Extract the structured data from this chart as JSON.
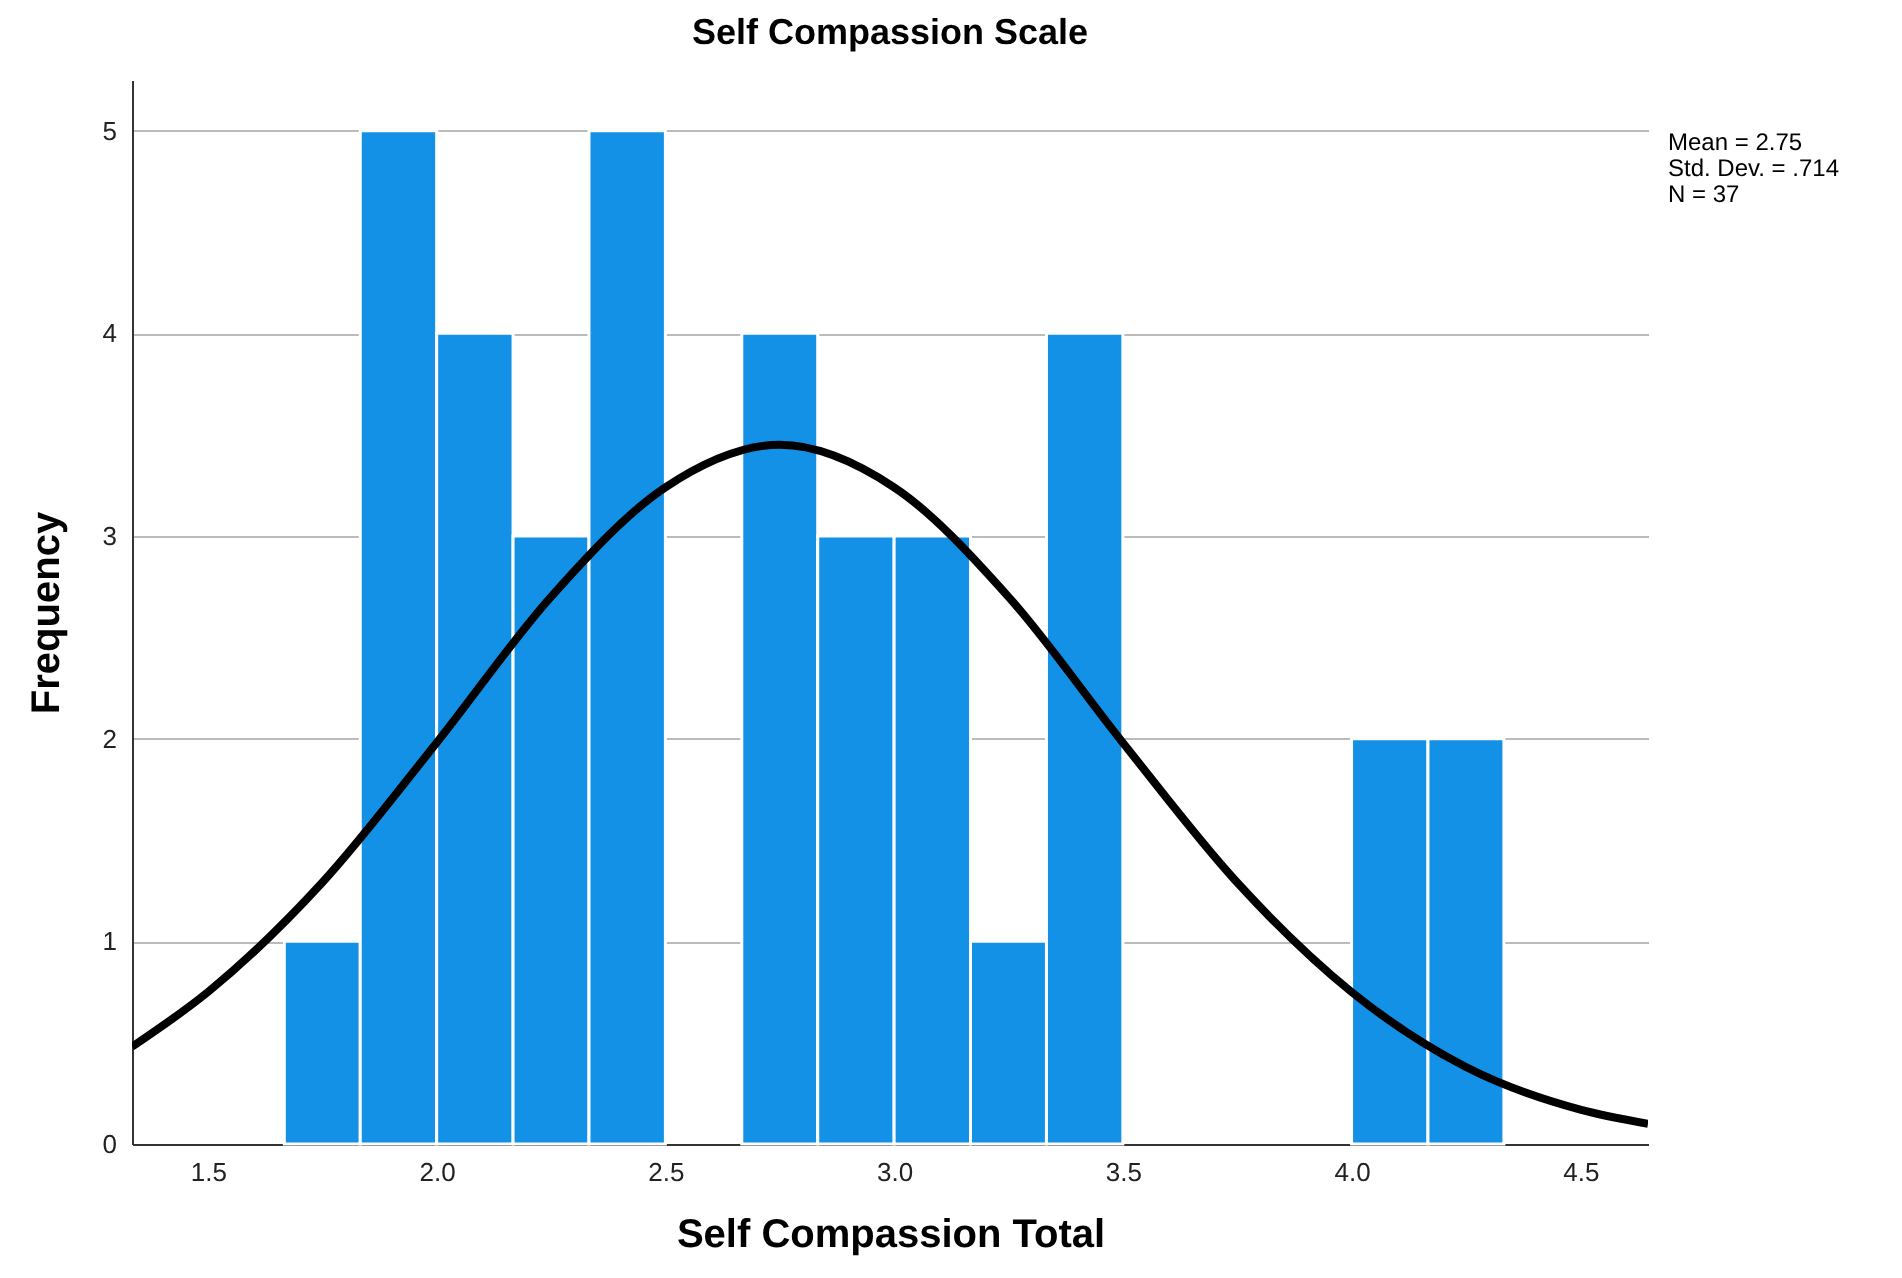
{
  "chart_data": {
    "type": "histogram",
    "title": "Self Compassion Scale",
    "xlabel": "Self Compassion Total",
    "ylabel": "Frequency",
    "bins": [
      1.667,
      1.833,
      2.0,
      2.167,
      2.333,
      2.5,
      2.667,
      2.833,
      3.0,
      3.167,
      3.333,
      3.5,
      3.667,
      3.833,
      4.0,
      4.167,
      4.333
    ],
    "values": [
      1,
      5,
      4,
      3,
      5,
      0,
      4,
      3,
      3,
      1,
      4,
      0,
      0,
      0,
      2,
      2
    ],
    "color": "#1391e6",
    "series": [
      {
        "type": "line",
        "color": "#000000",
        "x": [
          1.334,
          1.5,
          1.75,
          2.0,
          2.25,
          2.5,
          2.75,
          3.0,
          3.25,
          3.5,
          3.75,
          4.0,
          4.25,
          4.5,
          4.648
        ],
        "values": [
          0.48,
          0.75,
          1.29,
          1.98,
          2.7,
          3.24,
          3.45,
          3.24,
          2.7,
          1.98,
          1.29,
          0.75,
          0.38,
          0.17,
          0.1
        ]
      }
    ],
    "xlim": [
      1.334,
      4.648
    ],
    "xticks": [
      1.5,
      {
        "value": 2,
        "label": "2.0"
      },
      2.5,
      {
        "value": 3,
        "label": "3.0"
      },
      3.5,
      {
        "value": 4,
        "label": "4.0"
      },
      4.5
    ],
    "ylim": [
      0,
      5.25
    ],
    "yticks": [
      0,
      1,
      2,
      3,
      4,
      5
    ],
    "grid": "y",
    "annotations": [
      "Mean = 2.75",
      "Std. Dev. = .714",
      "N = 37"
    ]
  }
}
